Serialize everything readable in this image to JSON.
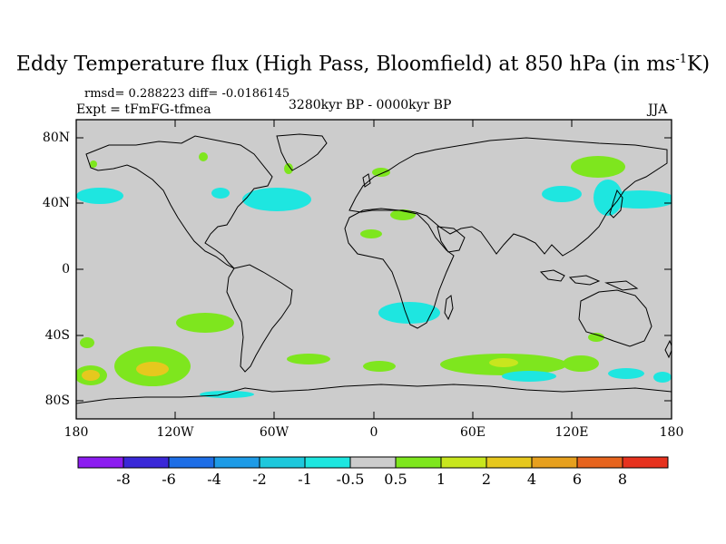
{
  "title": {
    "main": "Eddy Temperature flux (High Pass, Bloomfield) at 850 hPa (in ms",
    "sup": "-1",
    "end": "K)"
  },
  "stats": "rmsd= 0.288223 diff= -0.0186145",
  "experiment": "Expt = tFmFG-tfmea",
  "period": "3280kyr BP - 0000kyr BP",
  "season": "JJA",
  "y_ticks": [
    "80N",
    "40N",
    "0",
    "40S",
    "80S"
  ],
  "x_ticks": [
    "180",
    "120W",
    "60W",
    "0",
    "60E",
    "120E",
    "180"
  ],
  "colorbar": {
    "labels": [
      "-8",
      "-6",
      "-4",
      "-2",
      "-1",
      "-0.5",
      "0.5",
      "1",
      "2",
      "4",
      "6",
      "8"
    ],
    "colors": [
      "#8c1cf0",
      "#3a28d8",
      "#1e6ee6",
      "#1e9be6",
      "#1ec8dc",
      "#1ee6e0",
      "#cccccc",
      "#7ee61e",
      "#c8e61e",
      "#e6c81e",
      "#e6a01e",
      "#e6641e",
      "#e6321e"
    ]
  },
  "palette": {
    "ocean": "#cccccc",
    "cyan": "#1ee6e0",
    "green": "#7ee61e",
    "yellow": "#c8e61e",
    "gold": "#e6c81e"
  }
}
